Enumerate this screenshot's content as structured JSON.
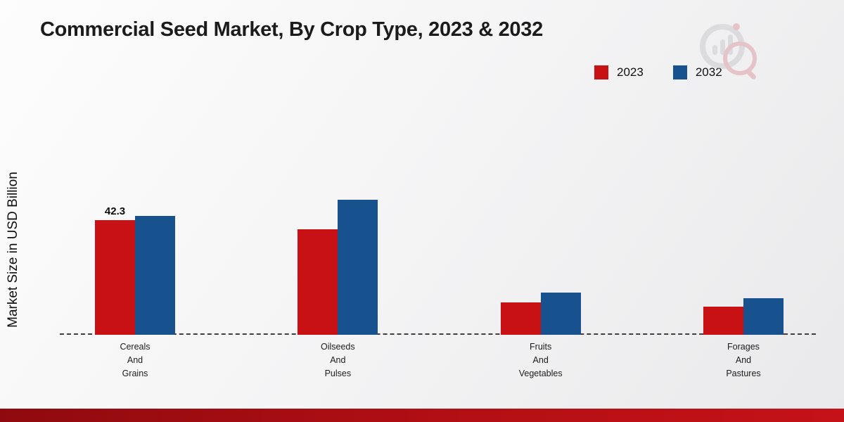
{
  "title": "Commercial Seed Market, By Crop Type, 2023 & 2032",
  "y_axis_label": "Market Size in USD Billion",
  "colors": {
    "series_2023": "#c81114",
    "series_2032": "#17518e",
    "footer_band": "#b30f14",
    "baseline": "#3f3f3f"
  },
  "chart_data": {
    "type": "bar",
    "title": "Commercial Seed Market, By Crop Type, 2023 & 2032",
    "ylabel": "Market Size in USD Billion",
    "xlabel": "",
    "ylim": [
      0,
      55
    ],
    "grid": false,
    "legend_position": "top-right",
    "axis_style": "dashed-baseline",
    "categories": [
      [
        "Cereals",
        "And",
        "Grains"
      ],
      [
        "Oilseeds",
        "And",
        "Pulses"
      ],
      [
        "Fruits",
        "And",
        "Vegetables"
      ],
      [
        "Forages",
        "And",
        "Pastures"
      ]
    ],
    "series": [
      {
        "name": "2023",
        "color": "#c81114",
        "values": [
          42.3,
          39.0,
          12.0,
          10.5
        ]
      },
      {
        "name": "2032",
        "color": "#17518e",
        "values": [
          44.0,
          50.0,
          15.5,
          13.5
        ]
      }
    ],
    "value_labels": [
      {
        "series": 0,
        "category": 0,
        "text": "42.3"
      }
    ]
  }
}
